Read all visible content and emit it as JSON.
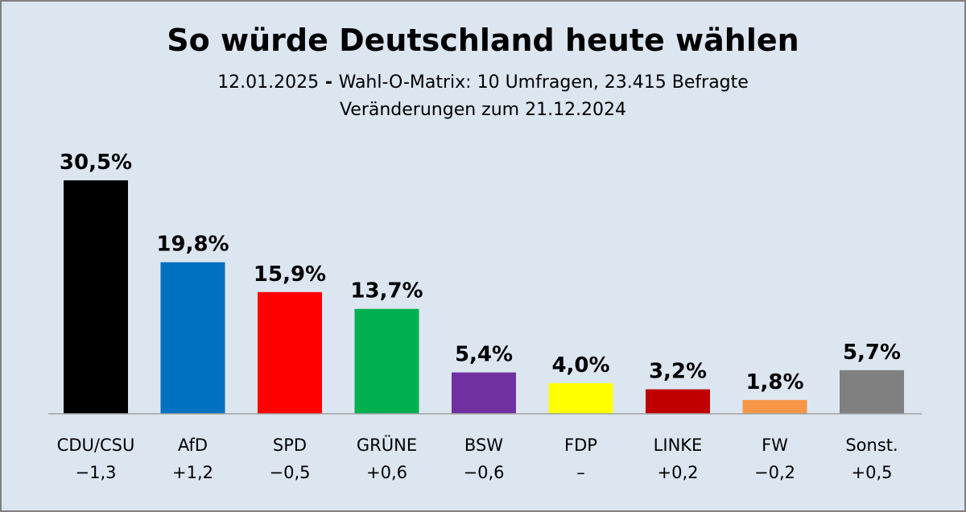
{
  "header": {
    "title": "So würde Deutschland heute wählen",
    "subtitle_date": "12.01.2025",
    "subtitle_sep": " - ",
    "subtitle_source": "Wahl-O-Matrix: 10 Umfragen, 23.415 Befragte",
    "subtitle_changes": "Veränderungen zum 21.12.2024"
  },
  "chart_data": {
    "type": "bar",
    "title": "So würde Deutschland heute wählen",
    "categories": [
      "CDU/CSU",
      "AfD",
      "SPD",
      "GRÜNE",
      "BSW",
      "FDP",
      "LINKE",
      "FW",
      "Sonst."
    ],
    "values": [
      30.5,
      19.8,
      15.9,
      13.7,
      5.4,
      4.0,
      3.2,
      1.8,
      5.7
    ],
    "value_labels": [
      "30,5%",
      "19,8%",
      "15,9%",
      "13,7%",
      "5,4%",
      "4,0%",
      "3,2%",
      "1,8%",
      "5,7%"
    ],
    "changes": [
      "−1,3",
      "+1,2",
      "−0,5",
      "+0,6",
      "−0,6",
      "–",
      "+0,2",
      "−0,2",
      "+0,5"
    ],
    "colors": [
      "#000000",
      "#0070c0",
      "#ff0000",
      "#00b050",
      "#7030a0",
      "#ffff00",
      "#c00000",
      "#f79646",
      "#808080"
    ],
    "ylim": [
      0,
      30.5
    ],
    "grid": false,
    "legend": "none"
  }
}
